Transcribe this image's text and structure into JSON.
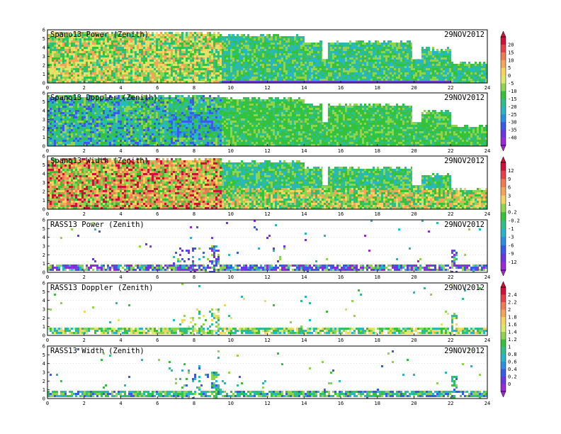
{
  "chart_data": [
    {
      "type": "heatmap",
      "title": "Spano13 Power (Zenith)",
      "date": "29NOV2012",
      "xlim": [
        0,
        24
      ],
      "ylim": [
        0,
        6
      ],
      "xticks": [
        "0",
        "2",
        "4",
        "6",
        "8",
        "10",
        "12",
        "14",
        "16",
        "18",
        "20",
        "22",
        "24"
      ],
      "yticks": [
        "0",
        "1",
        "2",
        "3",
        "4",
        "5",
        "6"
      ],
      "colorbar": "cb1"
    },
    {
      "type": "heatmap",
      "title": "Spano13 Doppler (Zenith)",
      "date": "29NOV2012",
      "xlim": [
        0,
        24
      ],
      "ylim": [
        0,
        6
      ],
      "xticks": [
        "0",
        "2",
        "4",
        "6",
        "8",
        "10",
        "12",
        "14",
        "16",
        "18",
        "20",
        "22",
        "24"
      ],
      "yticks": [
        "0",
        "1",
        "2",
        "3",
        "4",
        "5",
        "6"
      ],
      "colorbar": "cb1"
    },
    {
      "type": "heatmap",
      "title": "Spano13 Width (Zenith)",
      "date": "29NOV2012",
      "xlim": [
        0,
        24
      ],
      "ylim": [
        0,
        6
      ],
      "xticks": [
        "0",
        "2",
        "4",
        "6",
        "8",
        "10",
        "12",
        "14",
        "16",
        "18",
        "20",
        "22",
        "24"
      ],
      "yticks": [
        "0",
        "1",
        "2",
        "3",
        "4",
        "5",
        "6"
      ],
      "colorbar": "cb2"
    },
    {
      "type": "heatmap",
      "title": "RASS13 Power (Zenith)",
      "date": "29NOV2012",
      "xlim": [
        0,
        24
      ],
      "ylim": [
        0,
        6
      ],
      "xticks": [
        "0",
        "2",
        "4",
        "6",
        "8",
        "10",
        "12",
        "14",
        "16",
        "18",
        "20",
        "22",
        "24"
      ],
      "yticks": [
        "0",
        "1",
        "2",
        "3",
        "4",
        "5",
        "6"
      ],
      "colorbar": "cb2"
    },
    {
      "type": "heatmap",
      "title": "RASS13 Doppler (Zenith)",
      "date": "29NOV2012",
      "xlim": [
        0,
        24
      ],
      "ylim": [
        0,
        6
      ],
      "xticks": [
        "0",
        "2",
        "4",
        "6",
        "8",
        "10",
        "12",
        "14",
        "16",
        "18",
        "20",
        "22",
        "24"
      ],
      "yticks": [
        "0",
        "1",
        "2",
        "3",
        "4",
        "5",
        "6"
      ],
      "colorbar": "cb3"
    },
    {
      "type": "heatmap",
      "title": "RASS13 Width (Zenith)",
      "date": "29NOV2012",
      "xlim": [
        0,
        24
      ],
      "ylim": [
        0,
        6
      ],
      "xticks": [
        "0",
        "2",
        "4",
        "6",
        "8",
        "10",
        "12",
        "14",
        "16",
        "18",
        "20",
        "22",
        "24"
      ],
      "yticks": [
        "0",
        "1",
        "2",
        "3",
        "4",
        "5",
        "6"
      ],
      "colorbar": "cb3"
    }
  ],
  "colorbars": {
    "cb1": {
      "labels": [
        "20",
        "15",
        "10",
        "5",
        "0",
        "-5",
        "-10",
        "-15",
        "-20",
        "-25",
        "-30",
        "-35",
        "-40"
      ],
      "colors": [
        "#d0103a",
        "#e8404a",
        "#f07a52",
        "#f4a55a",
        "#f4d35e",
        "#dce86a",
        "#8fd44c",
        "#33c23a",
        "#2fbf8a",
        "#26b6c8",
        "#2a8fe0",
        "#3a5ae8",
        "#6a36e0",
        "#9a2ad8"
      ]
    },
    "cb2": {
      "labels": [
        "12",
        "9",
        "6",
        "3",
        "1",
        "0.2",
        "-0.2",
        "-1",
        "-3",
        "-6",
        "-9",
        "-12"
      ],
      "colors": [
        "#d0103a",
        "#e8404a",
        "#f07a52",
        "#f4a55a",
        "#f4d35e",
        "#8fd44c",
        "#33c23a",
        "#2fbf8a",
        "#26b6c8",
        "#2a8fe0",
        "#3a5ae8",
        "#6a36e0",
        "#9a2ad8"
      ]
    },
    "cb3": {
      "labels": [
        "2.4",
        "2.2",
        "2",
        "1.8",
        "1.6",
        "1.4",
        "1.2",
        "1",
        "0.8",
        "0.6",
        "0.4",
        "0.2",
        "0"
      ],
      "colors": [
        "#d0103a",
        "#e8404a",
        "#f07a52",
        "#f4a55a",
        "#f4d35e",
        "#dce86a",
        "#8fd44c",
        "#33c23a",
        "#2fbf8a",
        "#26b6c8",
        "#2a8fe0",
        "#3a5ae8",
        "#6a36e0",
        "#9a2ad8"
      ]
    }
  }
}
